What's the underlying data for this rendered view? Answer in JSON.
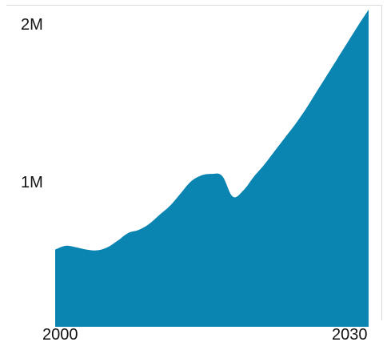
{
  "chart_data": {
    "type": "area",
    "title": "",
    "xlabel": "",
    "ylabel": "",
    "x": [
      2000,
      2001,
      2002,
      2003,
      2004,
      2005,
      2006,
      2007,
      2008,
      2009,
      2010,
      2011,
      2012,
      2013,
      2014,
      2015,
      2016,
      2017,
      2018,
      2019,
      2020,
      2021,
      2022,
      2023,
      2024,
      2025,
      2026,
      2027,
      2028,
      2029,
      2030
    ],
    "values": [
      510000,
      535000,
      525000,
      510000,
      505000,
      525000,
      570000,
      620000,
      640000,
      680000,
      740000,
      800000,
      880000,
      960000,
      1000000,
      1010000,
      995000,
      860000,
      900000,
      990000,
      1070000,
      1160000,
      1250000,
      1340000,
      1440000,
      1550000,
      1660000,
      1770000,
      1880000,
      1990000,
      2095000
    ],
    "xlim": [
      2000,
      2030
    ],
    "ylim": [
      0,
      2000000
    ],
    "x_ticks": [
      "2000",
      "2030"
    ],
    "y_ticks": [
      "2M",
      "1M"
    ],
    "y_tick_values": [
      2000000,
      1000000
    ],
    "fill_color": "#0a85b2",
    "grid": false
  }
}
